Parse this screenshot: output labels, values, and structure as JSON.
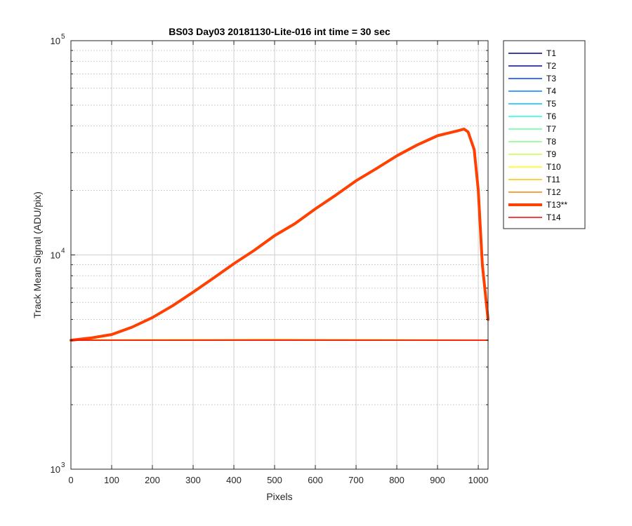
{
  "chart_data": {
    "type": "line",
    "title": "BS03 Day03 20181130-Lite-016 int time = 30 sec",
    "xlabel": "Pixels",
    "ylabel": "Track Mean Signal (ADU/pix)",
    "xlim": [
      0,
      1024
    ],
    "ylim": [
      1000,
      100000
    ],
    "yscale": "log",
    "xticks": [
      0,
      100,
      200,
      300,
      400,
      500,
      600,
      700,
      800,
      900,
      1000
    ],
    "xtick_labels": [
      "0",
      "100",
      "200",
      "300",
      "400",
      "500",
      "600",
      "700",
      "800",
      "900",
      "1000"
    ],
    "yticks": [
      {
        "value": 1000,
        "base": "10",
        "exp": "3"
      },
      {
        "value": 10000,
        "base": "10",
        "exp": "4"
      },
      {
        "value": 100000,
        "base": "10",
        "exp": "5"
      }
    ],
    "grid": true,
    "legend_position": "outside-right",
    "series": [
      {
        "name": "T1",
        "color": "#000080",
        "width": 1.5,
        "x": [
          0,
          1024
        ],
        "y": [
          4000,
          4000
        ]
      },
      {
        "name": "T2",
        "color": "#0000cc",
        "width": 1.5,
        "x": [
          0,
          1024
        ],
        "y": [
          4000,
          4000
        ]
      },
      {
        "name": "T3",
        "color": "#0040ff",
        "width": 1.5,
        "x": [
          0,
          1024
        ],
        "y": [
          4000,
          4000
        ]
      },
      {
        "name": "T4",
        "color": "#0080ff",
        "width": 1.5,
        "x": [
          0,
          1024
        ],
        "y": [
          4000,
          4000
        ]
      },
      {
        "name": "T5",
        "color": "#00bfff",
        "width": 1.5,
        "x": [
          0,
          1024
        ],
        "y": [
          4000,
          4000
        ]
      },
      {
        "name": "T6",
        "color": "#20ffdf",
        "width": 1.5,
        "x": [
          0,
          1024
        ],
        "y": [
          4000,
          4000
        ]
      },
      {
        "name": "T7",
        "color": "#60ffa0",
        "width": 1.5,
        "x": [
          0,
          1024
        ],
        "y": [
          4000,
          4000
        ]
      },
      {
        "name": "T8",
        "color": "#80ff80",
        "width": 1.5,
        "x": [
          0,
          1024
        ],
        "y": [
          4000,
          4000
        ]
      },
      {
        "name": "T9",
        "color": "#c0ff40",
        "width": 1.5,
        "x": [
          0,
          1024
        ],
        "y": [
          4010,
          4010
        ]
      },
      {
        "name": "T10",
        "color": "#ffff00",
        "width": 1.5,
        "x": [
          0,
          500,
          1024
        ],
        "y": [
          4010,
          4030,
          4010
        ]
      },
      {
        "name": "T11",
        "color": "#ffbf00",
        "width": 1.5,
        "x": [
          0,
          500,
          1024
        ],
        "y": [
          4010,
          4030,
          4010
        ]
      },
      {
        "name": "T12",
        "color": "#ff8000",
        "width": 1.5,
        "x": [
          0,
          500,
          1024
        ],
        "y": [
          4000,
          4020,
          4000
        ]
      },
      {
        "name": "T13**",
        "color": "#ff4000",
        "width": 4,
        "x": [
          0,
          50,
          100,
          150,
          200,
          250,
          300,
          350,
          400,
          450,
          500,
          550,
          600,
          650,
          700,
          750,
          800,
          850,
          900,
          950,
          965,
          975,
          990,
          1000,
          1010,
          1024
        ],
        "y": [
          4000,
          4100,
          4250,
          4600,
          5100,
          5800,
          6700,
          7800,
          9100,
          10500,
          12300,
          14000,
          16400,
          19000,
          22200,
          25300,
          29000,
          32600,
          36000,
          38000,
          38700,
          37500,
          31000,
          20000,
          9000,
          5000
        ]
      },
      {
        "name": "T14",
        "color": "#ff0000",
        "width": 1.5,
        "x": [
          0,
          1024
        ],
        "y": [
          4000,
          4000
        ]
      }
    ]
  }
}
